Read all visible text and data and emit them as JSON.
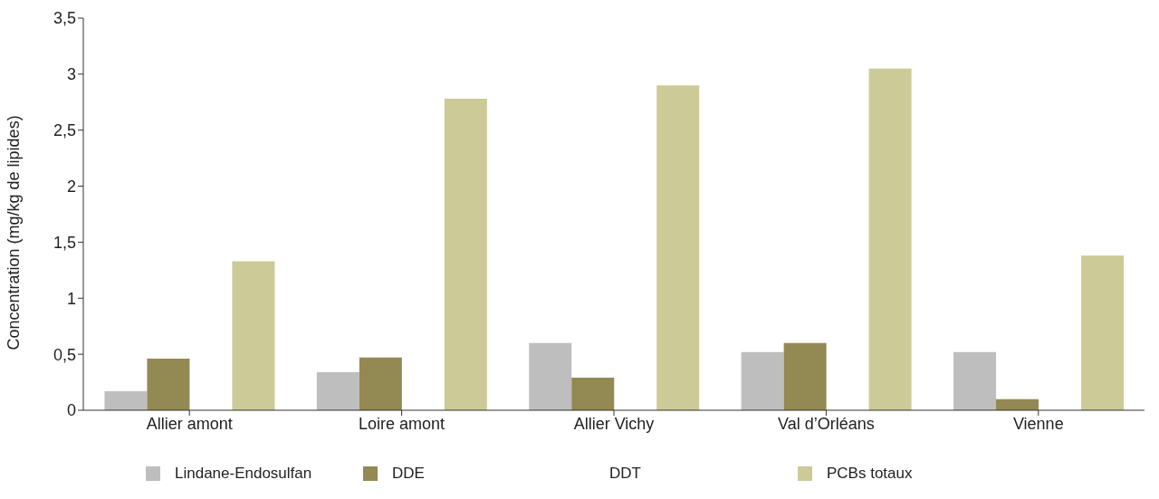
{
  "chart_data": {
    "type": "bar",
    "ylabel": "Concentration (mg/kg de lipides)",
    "categories": [
      "Allier amont",
      "Loire amont",
      "Allier Vichy",
      "Val d’Orléans",
      "Vienne"
    ],
    "series": [
      {
        "name": "Lindane-Endosulfan",
        "color": "#bebebe",
        "values": [
          0.17,
          0.34,
          0.6,
          0.52,
          0.52
        ]
      },
      {
        "name": "DDE",
        "color": "#938952",
        "values": [
          0.46,
          0.47,
          0.29,
          0.6,
          0.1
        ]
      },
      {
        "name": "DDT",
        "values": [
          null,
          null,
          null,
          null,
          null
        ]
      },
      {
        "name": "PCBs totaux",
        "color": "#ccca96",
        "values": [
          1.33,
          2.78,
          2.9,
          3.05,
          1.38
        ]
      }
    ],
    "ylim": [
      0,
      3.5
    ],
    "yticks": [
      0,
      {
        "value": 0.5,
        "label": "0,5"
      },
      1,
      {
        "value": 1.5,
        "label": "1,5"
      },
      2,
      {
        "value": 2.5,
        "label": "2,5"
      },
      3,
      {
        "value": 3.5,
        "label": "3,5"
      }
    ],
    "grid": false,
    "legend": "bottom"
  }
}
